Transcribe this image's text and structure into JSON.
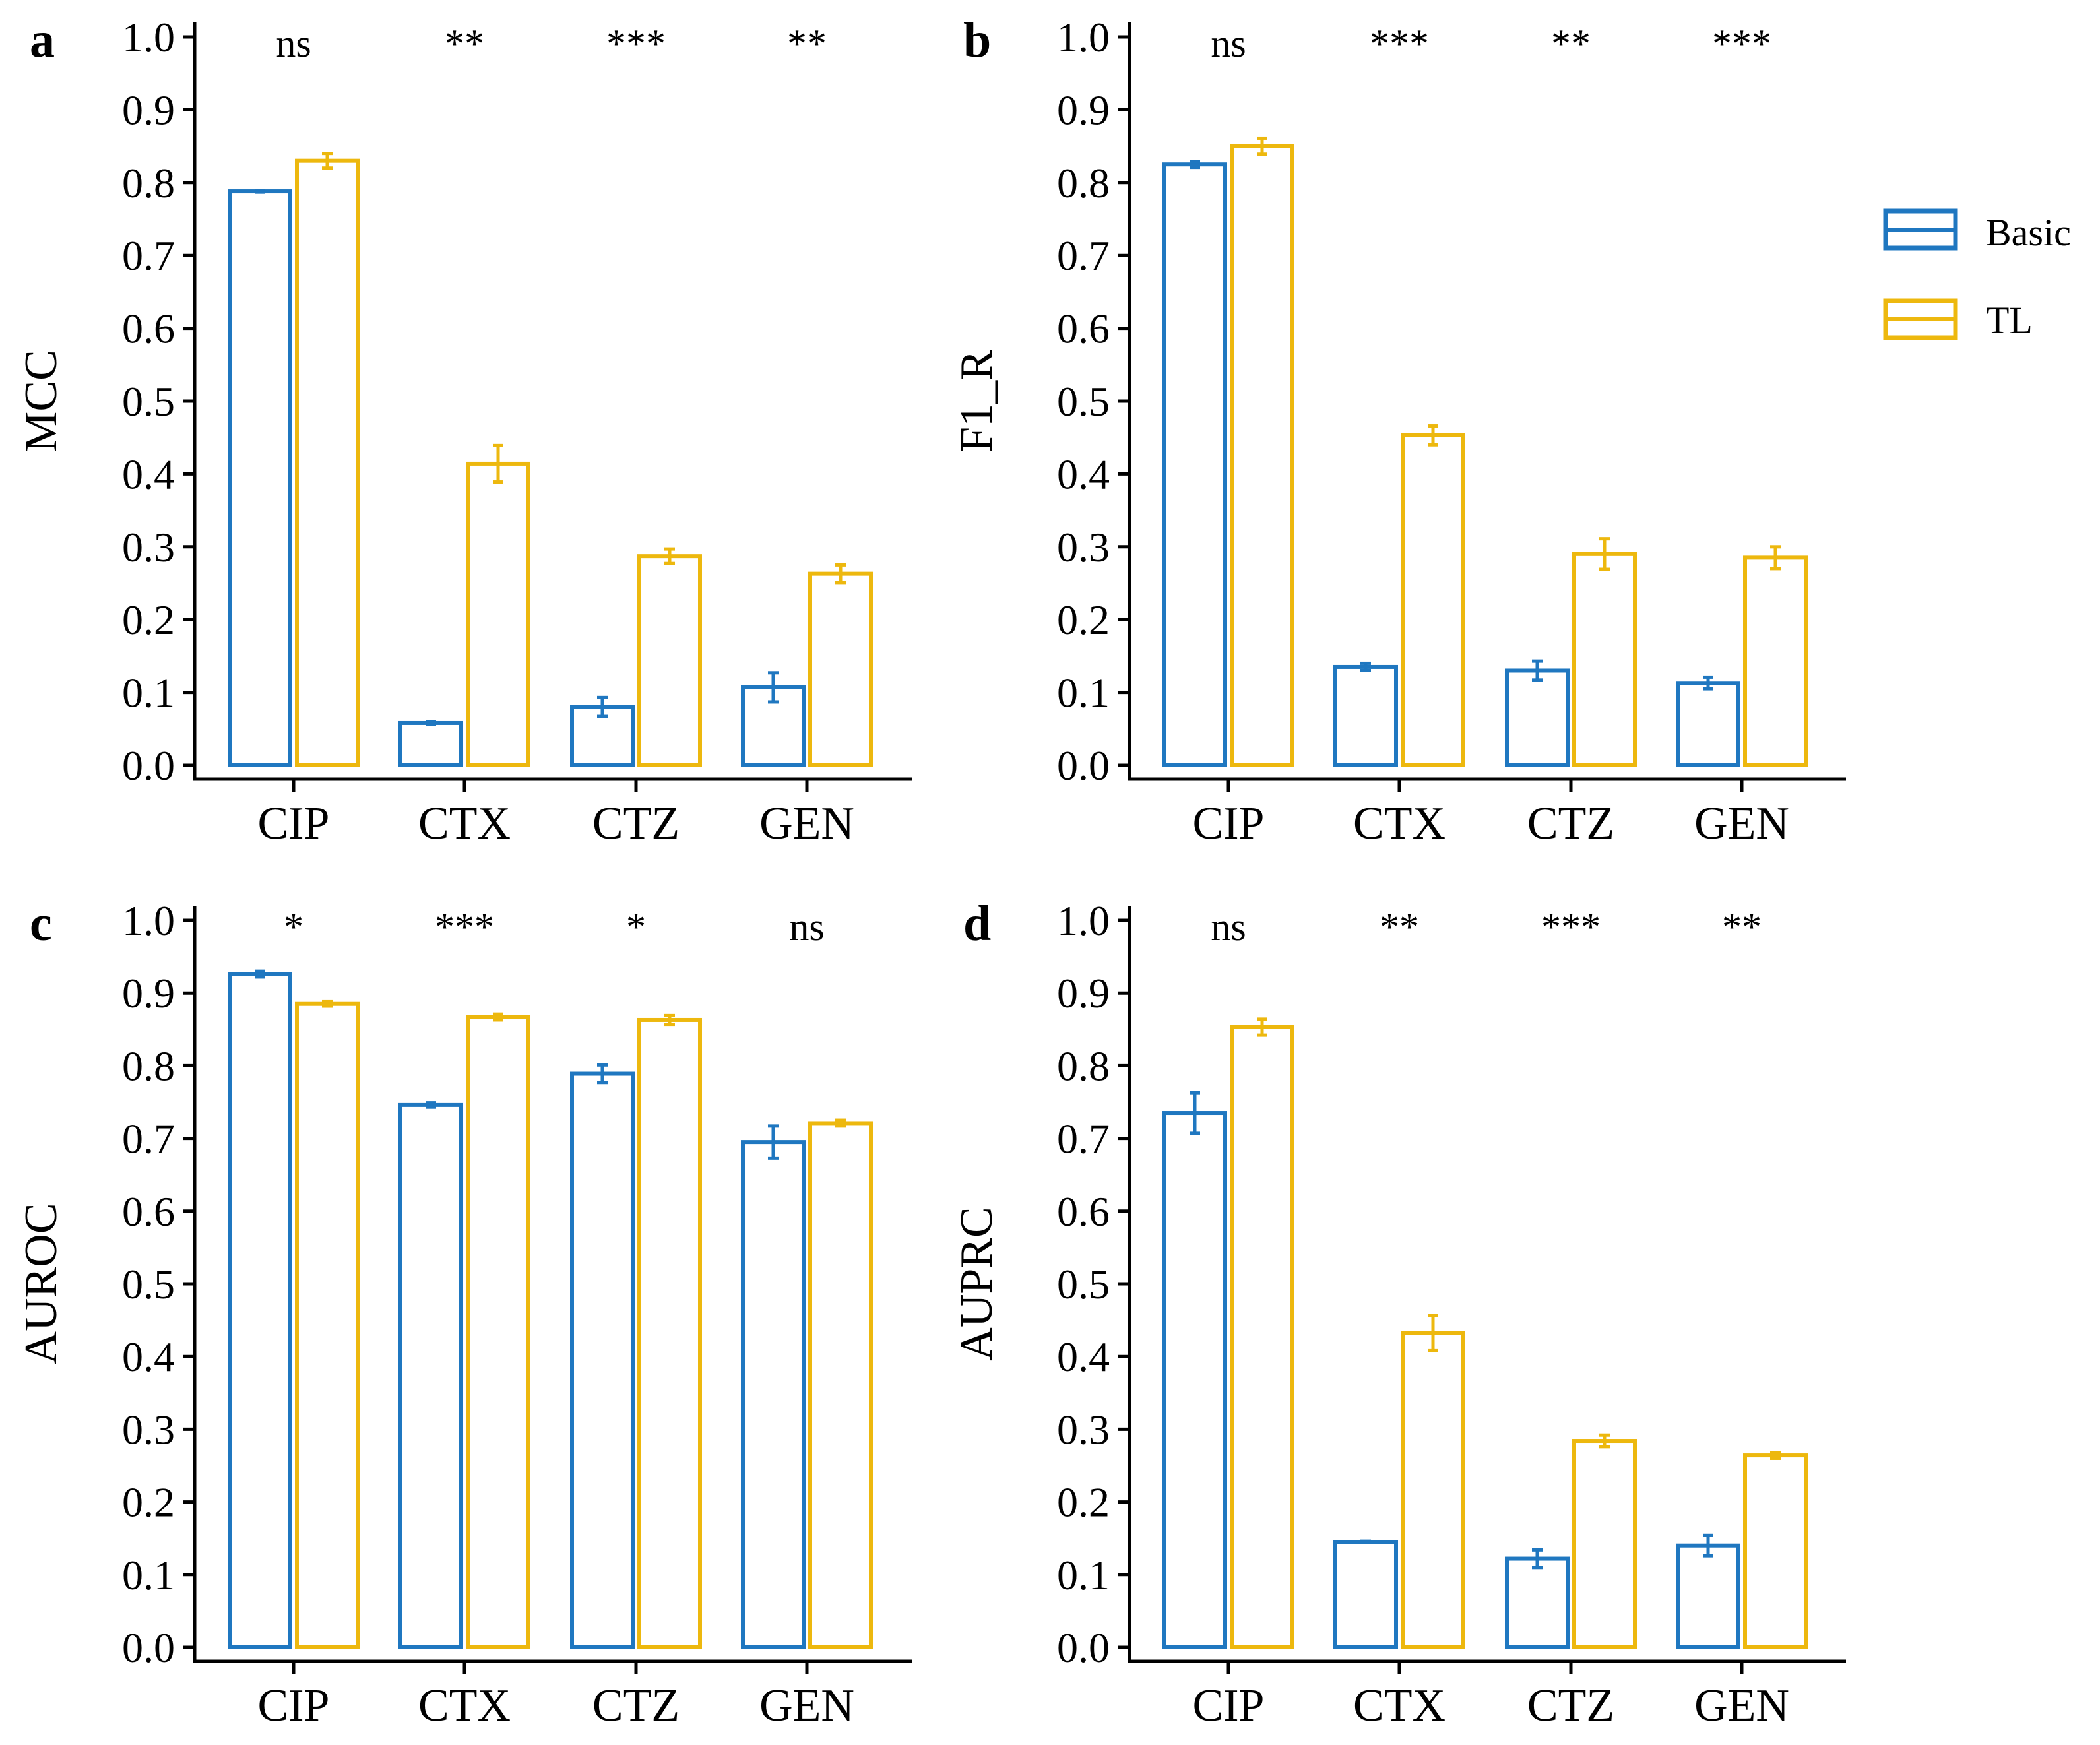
{
  "legend": {
    "items": [
      {
        "name": "Basic",
        "color": "#1F77C0"
      },
      {
        "name": "TL",
        "color": "#EDB80E"
      }
    ]
  },
  "chart_data": [
    {
      "type": "bar",
      "panel_label": "a",
      "ylabel": "MCC",
      "xlabel": "",
      "ylim": [
        0,
        1
      ],
      "yticks": [
        "0.0",
        "0.1",
        "0.2",
        "0.3",
        "0.4",
        "0.5",
        "0.6",
        "0.7",
        "0.8",
        "0.9",
        "1.0"
      ],
      "categories": [
        "CIP",
        "CTX",
        "CTZ",
        "GEN"
      ],
      "series": [
        {
          "name": "Basic",
          "values": [
            0.788,
            0.058,
            0.08,
            0.107
          ],
          "errors": [
            0.001,
            0.002,
            0.013,
            0.02
          ]
        },
        {
          "name": "TL",
          "values": [
            0.83,
            0.414,
            0.287,
            0.263
          ],
          "errors": [
            0.01,
            0.025,
            0.01,
            0.012
          ]
        }
      ],
      "significance": [
        "ns",
        "**",
        "***",
        "**"
      ]
    },
    {
      "type": "bar",
      "panel_label": "b",
      "ylabel": "F1_R",
      "xlabel": "",
      "ylim": [
        0,
        1
      ],
      "yticks": [
        "0.0",
        "0.1",
        "0.2",
        "0.3",
        "0.4",
        "0.5",
        "0.6",
        "0.7",
        "0.8",
        "0.9",
        "1.0"
      ],
      "categories": [
        "CIP",
        "CTX",
        "CTZ",
        "GEN"
      ],
      "series": [
        {
          "name": "Basic",
          "values": [
            0.825,
            0.135,
            0.13,
            0.113
          ],
          "errors": [
            0.004,
            0.005,
            0.013,
            0.008
          ]
        },
        {
          "name": "TL",
          "values": [
            0.85,
            0.453,
            0.29,
            0.285
          ],
          "errors": [
            0.011,
            0.013,
            0.021,
            0.015
          ]
        }
      ],
      "significance": [
        "ns",
        "***",
        "**",
        "***"
      ]
    },
    {
      "type": "bar",
      "panel_label": "c",
      "ylabel": "AUROC",
      "xlabel": "",
      "ylim": [
        0,
        1
      ],
      "yticks": [
        "0.0",
        "0.1",
        "0.2",
        "0.3",
        "0.4",
        "0.5",
        "0.6",
        "0.7",
        "0.8",
        "0.9",
        "1.0"
      ],
      "categories": [
        "CIP",
        "CTX",
        "CTZ",
        "GEN"
      ],
      "series": [
        {
          "name": "Basic",
          "values": [
            0.926,
            0.746,
            0.789,
            0.695
          ],
          "errors": [
            0.004,
            0.003,
            0.012,
            0.022
          ]
        },
        {
          "name": "TL",
          "values": [
            0.885,
            0.867,
            0.863,
            0.721
          ],
          "errors": [
            0.003,
            0.004,
            0.006,
            0.004
          ]
        }
      ],
      "significance": [
        "*",
        "***",
        "*",
        "ns"
      ]
    },
    {
      "type": "bar",
      "panel_label": "d",
      "ylabel": "AUPRC",
      "xlabel": "",
      "ylim": [
        0,
        1
      ],
      "yticks": [
        "0.0",
        "0.1",
        "0.2",
        "0.3",
        "0.4",
        "0.5",
        "0.6",
        "0.7",
        "0.8",
        "0.9",
        "1.0"
      ],
      "categories": [
        "CIP",
        "CTX",
        "CTZ",
        "GEN"
      ],
      "series": [
        {
          "name": "Basic",
          "values": [
            0.735,
            0.145,
            0.122,
            0.14
          ],
          "errors": [
            0.028,
            0.001,
            0.012,
            0.014
          ]
        },
        {
          "name": "TL",
          "values": [
            0.853,
            0.432,
            0.284,
            0.264
          ],
          "errors": [
            0.011,
            0.024,
            0.008,
            0.004
          ]
        }
      ],
      "significance": [
        "ns",
        "**",
        "***",
        "**"
      ]
    }
  ]
}
